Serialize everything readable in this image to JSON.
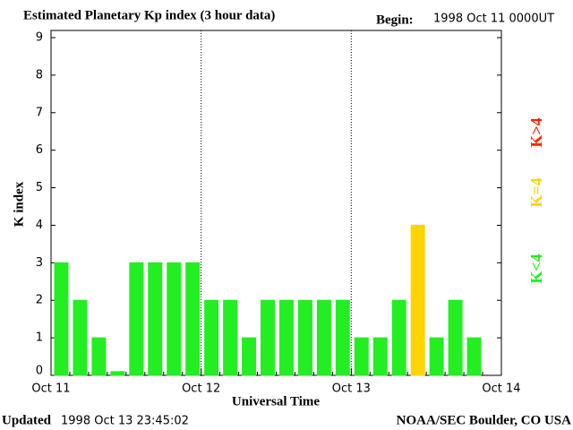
{
  "chart_data": {
    "type": "bar",
    "title": "Estimated Planetary Kp index (3 hour data)",
    "begin_label": "Begin:",
    "begin_value": "1998 Oct 11 0000UT",
    "y_label": "K index",
    "x_label": "Universal Time",
    "updated_label": "Updated",
    "updated_value": "1998 Oct 13 23:45:02",
    "source": "NOAA/SEC Boulder, CO USA",
    "x_labels": [
      "Oct 11",
      "Oct 12",
      "Oct 13",
      "Oct 14"
    ],
    "values": [
      3,
      2,
      1,
      0.1,
      3,
      3,
      3,
      3,
      2,
      2,
      1,
      2,
      2,
      2,
      2,
      2,
      1,
      1,
      2,
      4,
      1,
      2,
      1
    ],
    "colors": [
      "#22ee22",
      "#22ee22",
      "#22ee22",
      "#22ee22",
      "#22ee22",
      "#22ee22",
      "#22ee22",
      "#22ee22",
      "#22ee22",
      "#22ee22",
      "#22ee22",
      "#22ee22",
      "#22ee22",
      "#22ee22",
      "#22ee22",
      "#22ee22",
      "#22ee22",
      "#22ee22",
      "#22ee22",
      "#ffd400",
      "#22ee22",
      "#22ee22",
      "#22ee22"
    ],
    "ylim": [
      0,
      9
    ],
    "yticks": [
      0,
      1,
      2,
      3,
      4,
      5,
      6,
      7,
      8,
      9
    ],
    "legend": [
      {
        "name": "K<4",
        "color": "#22ee22"
      },
      {
        "name": "K=4",
        "color": "#ffd400"
      },
      {
        "name": "K>4",
        "color": "#ff2200"
      }
    ],
    "grid": true
  }
}
